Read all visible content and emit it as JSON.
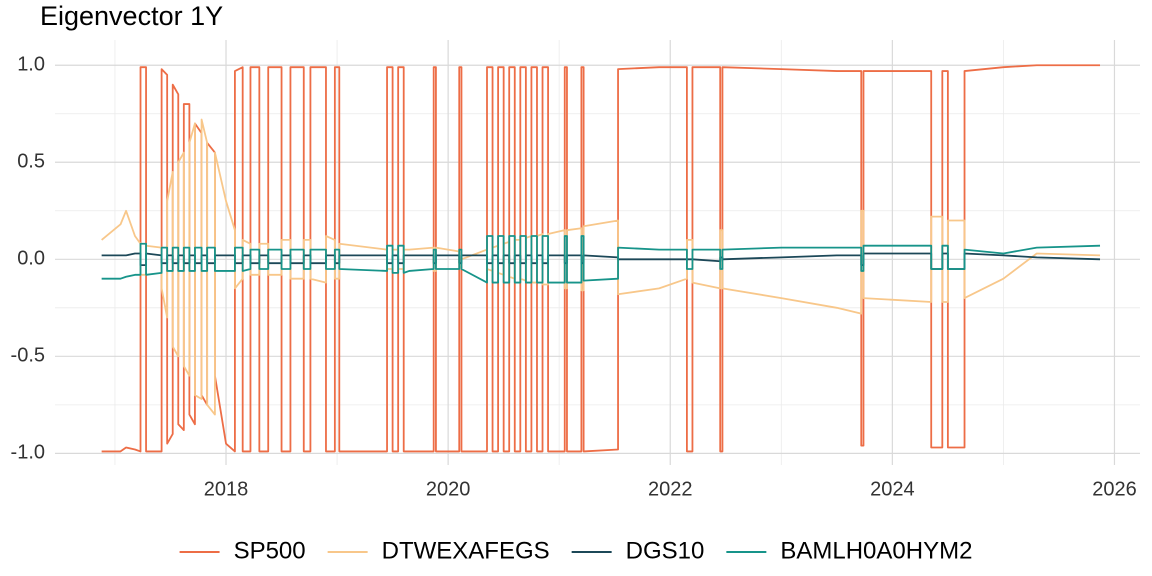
{
  "chart_data": {
    "type": "line",
    "title": "Eigenvector 1Y",
    "x": [
      2016.88,
      2017.05,
      2017.1,
      2017.18,
      2017.23,
      2017.23,
      2017.28,
      2017.28,
      2017.42,
      2017.42,
      2017.47,
      2017.47,
      2017.52,
      2017.52,
      2017.57,
      2017.57,
      2017.62,
      2017.62,
      2017.67,
      2017.67,
      2017.72,
      2017.72,
      2017.78,
      2017.78,
      2017.83,
      2017.83,
      2017.9,
      2017.9,
      2018.0,
      2018.08,
      2018.08,
      2018.15,
      2018.15,
      2018.22,
      2018.22,
      2018.3,
      2018.3,
      2018.38,
      2018.38,
      2018.5,
      2018.5,
      2018.58,
      2018.58,
      2018.7,
      2018.7,
      2018.76,
      2018.76,
      2018.9,
      2018.9,
      2018.98,
      2018.98,
      2019.02,
      2019.02,
      2019.45,
      2019.45,
      2019.5,
      2019.5,
      2019.55,
      2019.55,
      2019.6,
      2019.6,
      2019.65,
      2019.87,
      2019.87,
      2019.89,
      2019.89,
      2020.1,
      2020.1,
      2020.12,
      2020.12,
      2020.35,
      2020.35,
      2020.4,
      2020.4,
      2020.45,
      2020.45,
      2020.5,
      2020.5,
      2020.55,
      2020.55,
      2020.6,
      2020.6,
      2020.65,
      2020.65,
      2020.7,
      2020.7,
      2020.75,
      2020.75,
      2020.8,
      2020.8,
      2020.85,
      2020.85,
      2020.9,
      2020.9,
      2021.05,
      2021.05,
      2021.07,
      2021.07,
      2021.2,
      2021.2,
      2021.22,
      2021.22,
      2021.53,
      2021.53,
      2021.9,
      2022.15,
      2022.15,
      2022.2,
      2022.2,
      2022.45,
      2022.45,
      2022.47,
      2022.47,
      2023.0,
      2023.5,
      2023.72,
      2023.72,
      2023.74,
      2023.74,
      2024.35,
      2024.35,
      2024.45,
      2024.45,
      2024.5,
      2024.5,
      2024.65,
      2024.65,
      2025.0,
      2025.3,
      2025.87
    ],
    "series": [
      {
        "name": "SP500",
        "color": "#ed6d46",
        "values": [
          -0.99,
          -0.99,
          -0.97,
          -0.98,
          -0.99,
          0.99,
          0.99,
          -0.99,
          -0.99,
          0.98,
          0.95,
          -0.95,
          -0.9,
          0.9,
          0.85,
          -0.85,
          -0.88,
          0.8,
          0.8,
          -0.8,
          -0.85,
          0.7,
          0.65,
          -0.7,
          -0.75,
          0.6,
          0.55,
          -0.6,
          -0.95,
          -0.99,
          0.97,
          0.99,
          -0.99,
          -0.99,
          0.99,
          0.99,
          -0.99,
          -0.99,
          0.99,
          0.99,
          -0.99,
          -0.99,
          0.99,
          0.99,
          -0.99,
          -0.99,
          0.99,
          0.99,
          -0.99,
          -0.99,
          0.99,
          0.99,
          -0.99,
          -0.99,
          0.99,
          0.99,
          -0.99,
          -0.99,
          0.99,
          0.99,
          -0.99,
          -0.99,
          -0.99,
          0.99,
          0.99,
          -0.99,
          -0.99,
          0.99,
          0.99,
          -0.99,
          -0.99,
          0.99,
          0.99,
          -0.99,
          -0.99,
          0.99,
          0.99,
          -0.99,
          -0.99,
          0.99,
          0.99,
          -0.99,
          -0.99,
          0.99,
          0.99,
          -0.99,
          -0.99,
          0.99,
          0.99,
          -0.99,
          -0.99,
          0.99,
          0.99,
          -0.99,
          -0.99,
          0.99,
          0.99,
          -0.99,
          -0.99,
          0.99,
          0.99,
          -0.99,
          -0.98,
          0.98,
          0.99,
          0.99,
          -0.99,
          -0.99,
          0.99,
          0.99,
          -0.99,
          -0.99,
          0.99,
          0.98,
          0.97,
          0.97,
          -0.96,
          -0.96,
          0.97,
          0.97,
          -0.97,
          -0.97,
          0.97,
          0.97,
          -0.97,
          -0.97,
          0.97,
          0.99,
          1.0,
          1.0
        ]
      },
      {
        "name": "DTWEXAFEGS",
        "color": "#f8c78a",
        "values": [
          0.1,
          0.18,
          0.25,
          0.12,
          0.08,
          -0.08,
          -0.08,
          0.07,
          0.06,
          -0.15,
          -0.3,
          0.3,
          0.45,
          -0.45,
          -0.5,
          0.5,
          0.55,
          -0.55,
          -0.6,
          0.6,
          0.7,
          -0.7,
          -0.72,
          0.72,
          0.6,
          -0.75,
          -0.8,
          0.55,
          0.3,
          0.15,
          -0.15,
          -0.1,
          0.1,
          0.08,
          -0.08,
          -0.08,
          0.08,
          0.08,
          -0.08,
          -0.08,
          0.1,
          0.1,
          -0.1,
          -0.1,
          0.1,
          0.1,
          -0.1,
          -0.12,
          0.12,
          0.1,
          -0.1,
          -0.1,
          0.08,
          0.05,
          -0.05,
          -0.05,
          0.05,
          0.05,
          -0.05,
          -0.05,
          0.05,
          0.05,
          0.06,
          -0.06,
          -0.06,
          0.06,
          0.04,
          -0.04,
          -0.04,
          0.0,
          0.05,
          -0.05,
          -0.06,
          0.06,
          0.07,
          -0.07,
          -0.08,
          0.08,
          0.09,
          -0.09,
          -0.1,
          0.1,
          0.1,
          -0.1,
          -0.11,
          0.11,
          0.12,
          -0.12,
          -0.12,
          0.12,
          0.13,
          -0.13,
          -0.13,
          0.13,
          0.15,
          -0.15,
          -0.15,
          0.15,
          0.16,
          -0.16,
          -0.16,
          0.17,
          0.2,
          -0.18,
          -0.15,
          -0.1,
          0.1,
          0.1,
          -0.12,
          -0.15,
          0.15,
          0.15,
          -0.15,
          -0.2,
          -0.25,
          -0.28,
          0.25,
          0.25,
          -0.2,
          -0.22,
          0.22,
          0.22,
          -0.22,
          -0.22,
          0.2,
          0.2,
          -0.2,
          -0.1,
          0.03,
          0.02
        ]
      },
      {
        "name": "DGS10",
        "color": "#1c4858",
        "values": [
          0.02,
          0.02,
          0.02,
          0.03,
          0.03,
          -0.03,
          -0.03,
          0.03,
          0.02,
          -0.02,
          -0.02,
          0.02,
          0.02,
          -0.02,
          -0.02,
          0.02,
          0.02,
          -0.02,
          -0.02,
          0.02,
          0.02,
          -0.02,
          -0.02,
          0.02,
          0.02,
          -0.02,
          -0.02,
          0.02,
          0.02,
          0.02,
          -0.02,
          -0.02,
          0.02,
          0.02,
          -0.02,
          -0.02,
          0.02,
          0.02,
          -0.02,
          -0.02,
          0.02,
          0.02,
          -0.02,
          -0.02,
          0.02,
          0.02,
          -0.02,
          -0.02,
          0.02,
          0.02,
          -0.02,
          -0.02,
          0.02,
          0.02,
          -0.02,
          -0.02,
          0.02,
          0.02,
          -0.02,
          -0.02,
          0.02,
          0.02,
          0.02,
          -0.02,
          -0.02,
          0.02,
          0.02,
          -0.02,
          -0.02,
          0.02,
          0.02,
          -0.02,
          -0.02,
          0.02,
          0.02,
          -0.02,
          -0.02,
          0.02,
          0.02,
          -0.02,
          -0.02,
          0.02,
          0.02,
          -0.02,
          -0.02,
          0.02,
          0.02,
          -0.02,
          -0.02,
          0.02,
          0.02,
          -0.02,
          -0.02,
          0.02,
          0.02,
          -0.02,
          -0.02,
          0.02,
          0.02,
          -0.02,
          -0.02,
          0.02,
          0.01,
          0.0,
          0.0,
          0.0,
          0.0,
          0.0,
          0.0,
          -0.01,
          0.01,
          0.01,
          0.0,
          0.01,
          0.02,
          0.02,
          -0.03,
          -0.03,
          0.03,
          0.03,
          -0.05,
          -0.05,
          0.03,
          0.03,
          -0.05,
          -0.05,
          0.03,
          0.02,
          0.01,
          0.0
        ]
      },
      {
        "name": "BAMLH0A0HYM2",
        "color": "#17948a",
        "values": [
          -0.1,
          -0.1,
          -0.09,
          -0.08,
          -0.08,
          0.08,
          0.08,
          -0.08,
          -0.07,
          0.06,
          0.06,
          -0.06,
          -0.06,
          0.06,
          0.06,
          -0.06,
          -0.06,
          0.06,
          0.06,
          -0.06,
          -0.06,
          0.06,
          0.06,
          -0.06,
          -0.06,
          0.06,
          0.06,
          -0.06,
          -0.06,
          -0.06,
          0.06,
          0.06,
          -0.06,
          -0.05,
          0.05,
          0.05,
          -0.05,
          -0.05,
          0.05,
          0.05,
          -0.05,
          -0.05,
          0.05,
          0.05,
          -0.05,
          -0.05,
          0.05,
          0.05,
          -0.05,
          -0.05,
          0.05,
          0.05,
          -0.05,
          -0.06,
          0.07,
          0.07,
          -0.07,
          -0.07,
          0.07,
          0.07,
          -0.07,
          -0.06,
          -0.05,
          0.05,
          0.05,
          -0.05,
          -0.05,
          0.05,
          0.05,
          -0.05,
          -0.12,
          0.12,
          0.12,
          -0.12,
          -0.12,
          0.12,
          0.12,
          -0.12,
          -0.12,
          0.12,
          0.12,
          -0.12,
          -0.12,
          0.12,
          0.12,
          -0.12,
          -0.12,
          0.12,
          0.12,
          -0.12,
          -0.12,
          0.12,
          0.12,
          -0.12,
          -0.12,
          0.12,
          0.12,
          -0.12,
          -0.12,
          0.12,
          0.12,
          -0.11,
          -0.1,
          0.06,
          0.05,
          0.05,
          -0.05,
          -0.05,
          0.05,
          0.05,
          -0.05,
          -0.05,
          0.05,
          0.06,
          0.06,
          0.06,
          -0.06,
          -0.06,
          0.07,
          0.07,
          -0.05,
          -0.05,
          0.07,
          0.07,
          -0.05,
          -0.05,
          0.05,
          0.03,
          0.06,
          0.07
        ]
      }
    ],
    "xlim": [
      2016.46,
      2026.23
    ],
    "xticks": [
      2018,
      2020,
      2022,
      2024,
      2026
    ],
    "ylim": [
      -1.06,
      1.13
    ],
    "yticks": [
      {
        "value": -1,
        "label": "-1.0"
      },
      -0.5,
      {
        "value": 0,
        "label": "0.0"
      },
      0.5,
      {
        "value": 1,
        "label": "1.0"
      }
    ],
    "grid": true,
    "legend": "bottom"
  }
}
